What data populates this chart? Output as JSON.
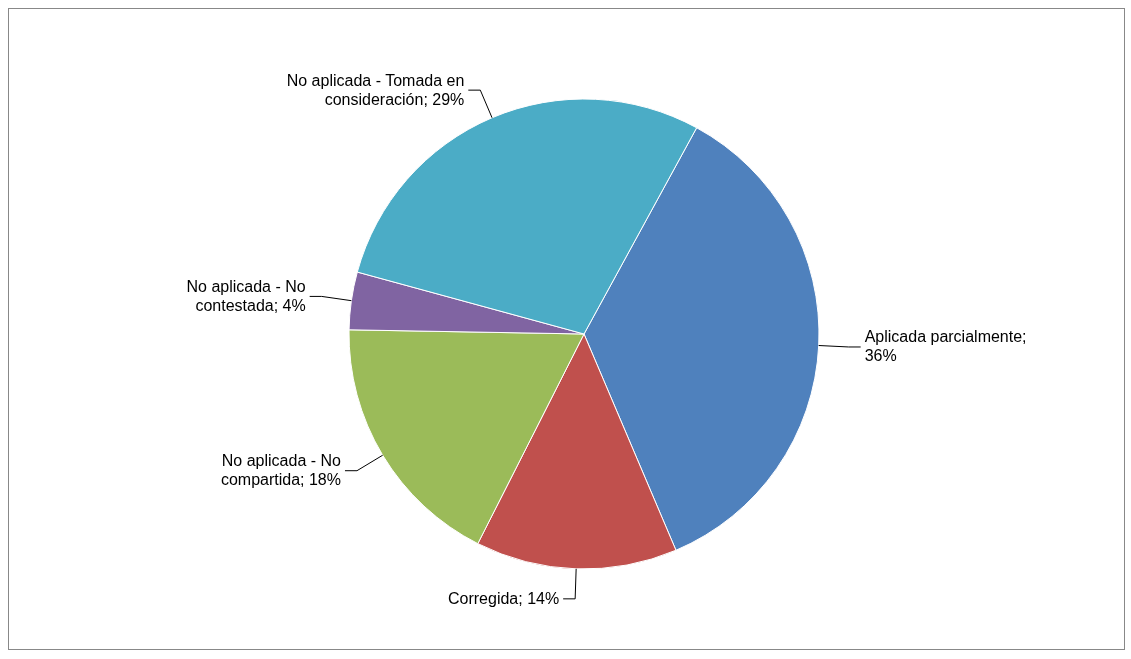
{
  "chart_data": {
    "type": "pie",
    "categories": [
      "Aplicada parcialmente",
      "Corregida",
      "No aplicada - No compartida",
      "No aplicada - No contestada",
      "No aplicada - Tomada en consideración"
    ],
    "values": [
      36,
      14,
      18,
      4,
      29
    ],
    "value_labels": [
      "; 36%",
      "; 14%",
      "; 18%",
      "; 4%",
      "; 29%"
    ],
    "colors": [
      "#4f81bd",
      "#c0504d",
      "#9bbb59",
      "#8064a2",
      "#4bacc6"
    ]
  }
}
